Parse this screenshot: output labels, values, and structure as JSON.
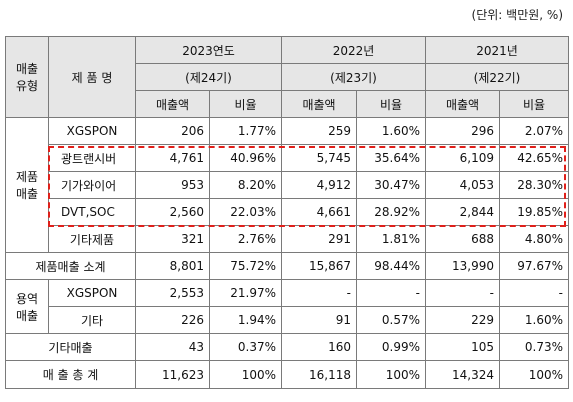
{
  "unit_note": "(단위: 백만원, %)",
  "header": {
    "type_label_1": "매출",
    "type_label_2": "유형",
    "product_label": "제 품 명",
    "years": [
      {
        "year": "2023연도",
        "period": "(제24기)"
      },
      {
        "year": "2022년",
        "period": "(제23기)"
      },
      {
        "year": "2021년",
        "period": "(제22기)"
      }
    ],
    "sales_label": "매출액",
    "ratio_label": "비율"
  },
  "groups": {
    "product_sales_1": "제품",
    "product_sales_2": "매출",
    "service_sales_1": "용역",
    "service_sales_2": "매출"
  },
  "rows": [
    {
      "name": "XGSPON",
      "v": [
        "206",
        "1.77%",
        "259",
        "1.60%",
        "296",
        "2.07%"
      ]
    },
    {
      "name": "광트랜시버",
      "v": [
        "4,761",
        "40.96%",
        "5,745",
        "35.64%",
        "6,109",
        "42.65%"
      ]
    },
    {
      "name": "기가와이어",
      "v": [
        "953",
        "8.20%",
        "4,912",
        "30.47%",
        "4,053",
        "28.30%"
      ]
    },
    {
      "name": "DVT,SOC",
      "v": [
        "2,560",
        "22.03%",
        "4,661",
        "28.92%",
        "2,844",
        "19.85%"
      ]
    },
    {
      "name": "기타제품",
      "v": [
        "321",
        "2.76%",
        "291",
        "1.81%",
        "688",
        "4.80%"
      ]
    },
    {
      "name": "제품매출 소계",
      "v": [
        "8,801",
        "75.72%",
        "15,867",
        "98.44%",
        "13,990",
        "97.67%"
      ]
    },
    {
      "name": "XGSPON",
      "v": [
        "2,553",
        "21.97%",
        "-",
        "-",
        "-",
        "-"
      ]
    },
    {
      "name": "기타",
      "v": [
        "226",
        "1.94%",
        "91",
        "0.57%",
        "229",
        "1.60%"
      ]
    },
    {
      "name": "기타매출",
      "v": [
        "43",
        "0.37%",
        "160",
        "0.99%",
        "105",
        "0.73%"
      ]
    },
    {
      "name": "매 출 총 계",
      "v": [
        "11,623",
        "100%",
        "16,118",
        "100%",
        "14,324",
        "100%"
      ]
    }
  ]
}
